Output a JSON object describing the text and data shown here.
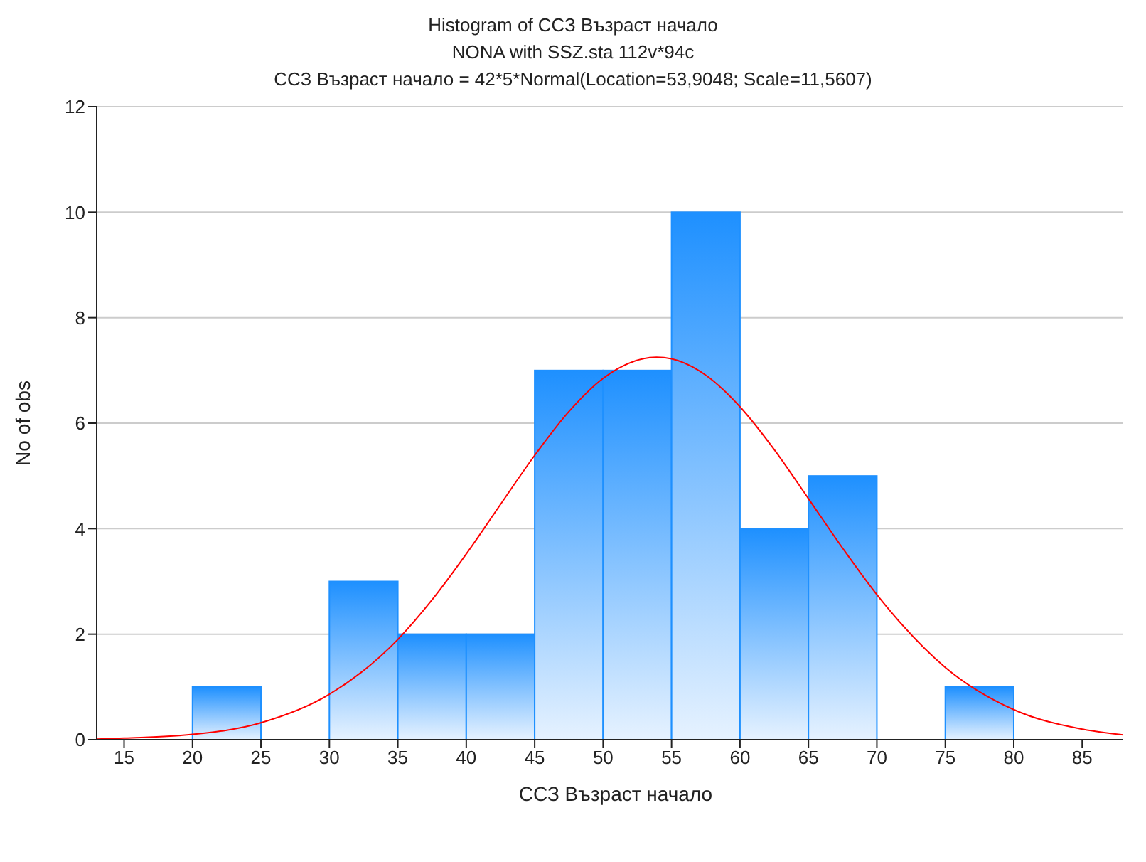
{
  "chart_data": {
    "type": "histogram",
    "title": "Histogram of ССЗ Възраст начало",
    "subtitle": "NONA with SSZ.sta 112v*94c",
    "annotations": [
      "ССЗ Възраст начало = 42*5*Normal(Location=53,9048; Scale=11,5607)"
    ],
    "xlabel": "ССЗ Възраст начало",
    "ylabel": "No of obs",
    "xlim": [
      13,
      88
    ],
    "xticks": [
      15,
      20,
      25,
      30,
      35,
      40,
      45,
      50,
      55,
      60,
      65,
      70,
      75,
      80,
      85
    ],
    "ylim": [
      0,
      12
    ],
    "yticks": [
      0,
      2,
      4,
      6,
      8,
      10,
      12
    ],
    "grid": "y",
    "series": [
      {
        "type": "histogram",
        "color": "#1e90ff",
        "bins": [
          15,
          20,
          25,
          30,
          35,
          40,
          45,
          50,
          55,
          60,
          65,
          70,
          75,
          80,
          85
        ],
        "values": [
          0,
          1,
          0,
          3,
          2,
          2,
          7,
          7,
          10,
          4,
          5,
          0,
          1,
          0
        ]
      },
      {
        "type": "line",
        "color": "#ff0000",
        "x": [
          13,
          15,
          20,
          25,
          30,
          35,
          37.5,
          40,
          42.5,
          45,
          47.5,
          50,
          53.9,
          55,
          57.5,
          60,
          62.5,
          65,
          67.5,
          70,
          75,
          80,
          85,
          88
        ],
        "values": [
          0.01,
          0.03,
          0.1,
          0.32,
          0.86,
          1.9,
          2.65,
          3.52,
          4.46,
          5.39,
          6.22,
          6.85,
          7.25,
          7.22,
          6.91,
          6.31,
          5.5,
          4.57,
          3.63,
          2.75,
          1.37,
          0.57,
          0.2,
          0.09
        ]
      }
    ]
  }
}
